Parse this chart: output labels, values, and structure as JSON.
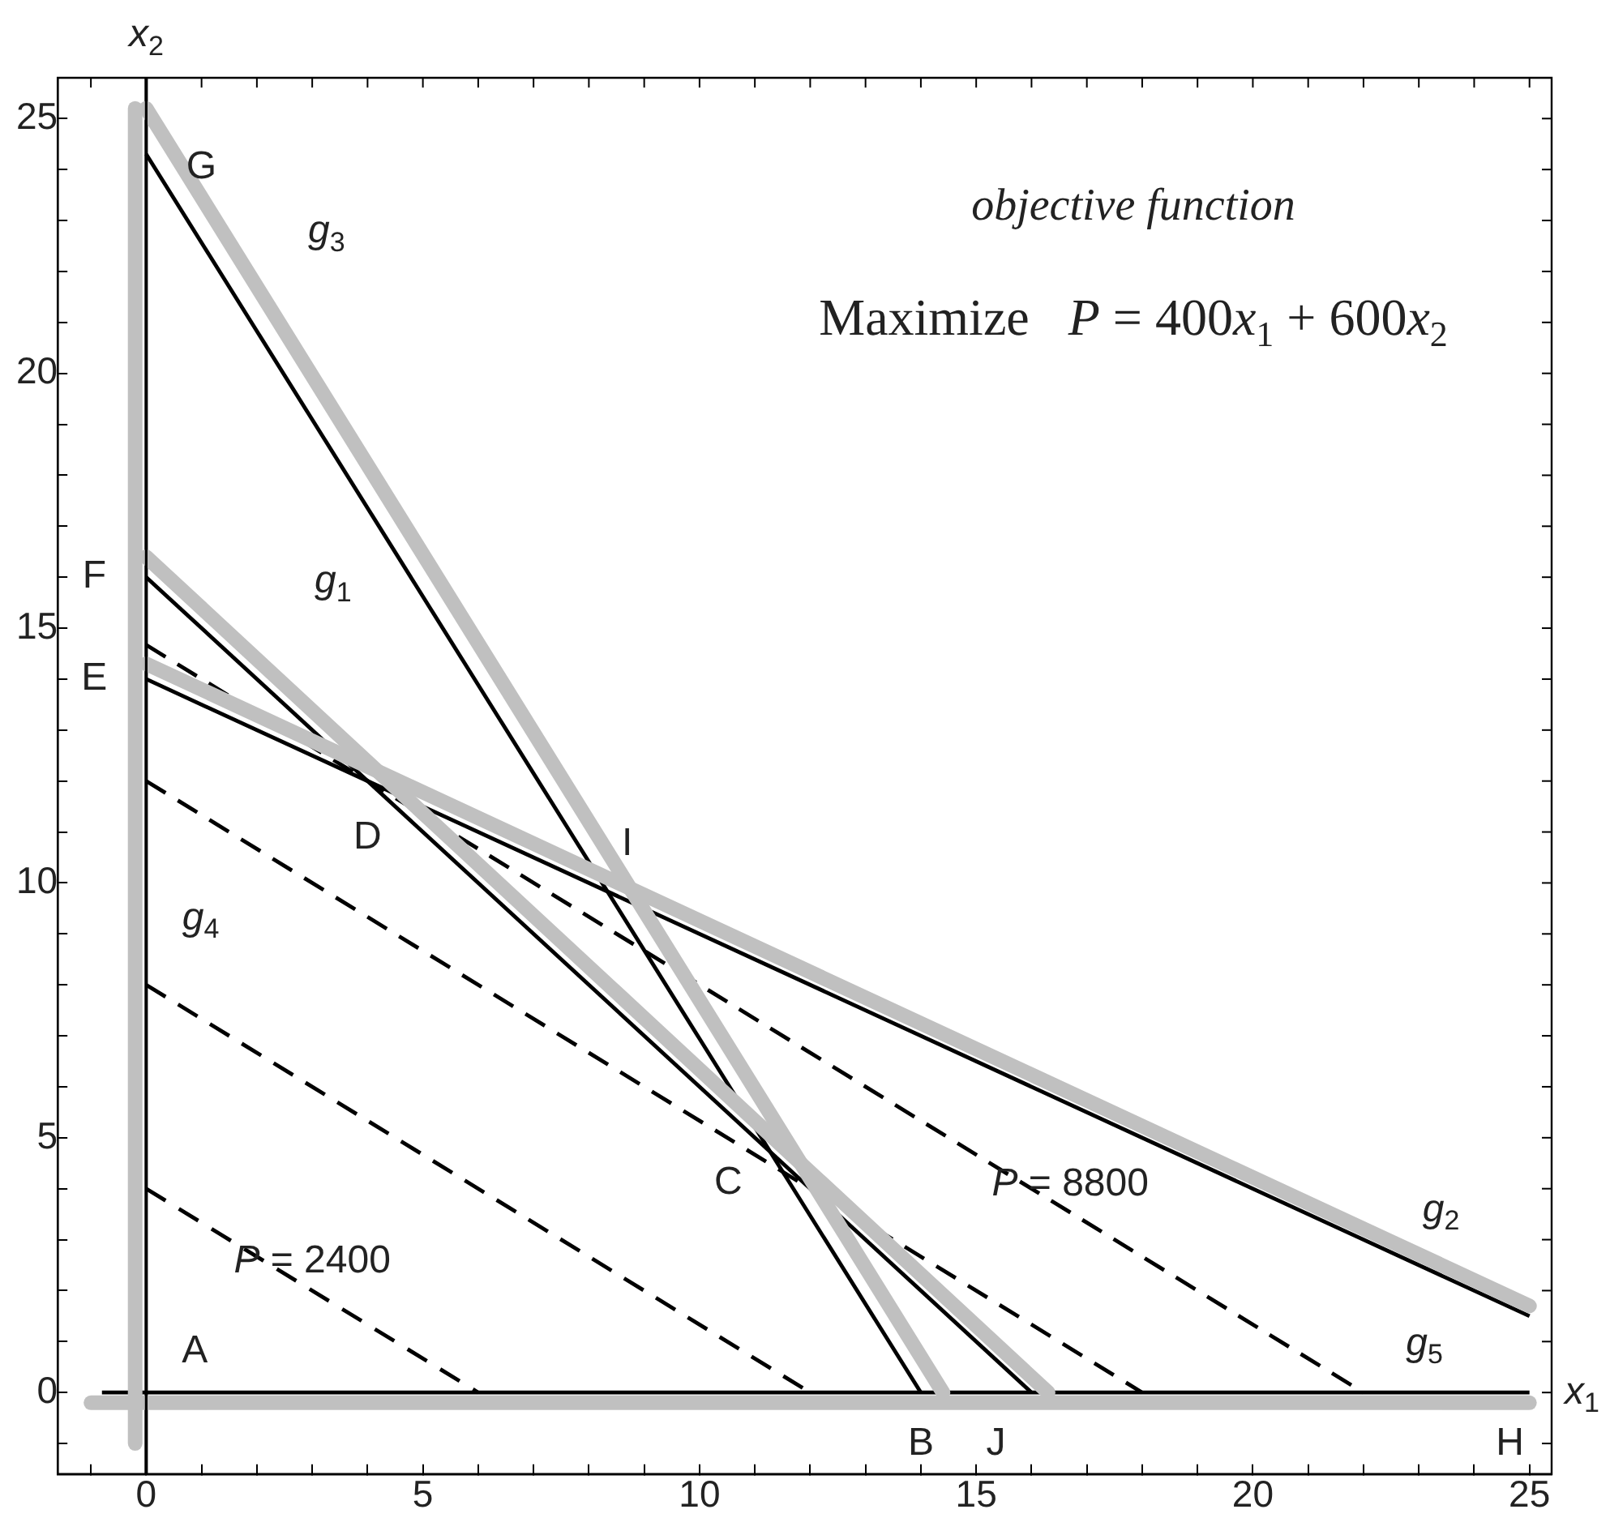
{
  "chart_data": {
    "type": "line",
    "xlabel": "x$_{1}$",
    "ylabel": "x$_{2}$",
    "xlim": [
      -1.6,
      25.4
    ],
    "ylim": [
      -1.6,
      25.8
    ],
    "xticks": [
      {
        "value": -1,
        "label": null
      },
      0,
      {
        "value": 1,
        "label": null
      },
      {
        "value": 2,
        "label": null
      },
      {
        "value": 3,
        "label": null
      },
      {
        "value": 4,
        "label": null
      },
      5,
      {
        "value": 6,
        "label": null
      },
      {
        "value": 7,
        "label": null
      },
      {
        "value": 8,
        "label": null
      },
      {
        "value": 9,
        "label": null
      },
      10,
      {
        "value": 11,
        "label": null
      },
      {
        "value": 12,
        "label": null
      },
      {
        "value": 13,
        "label": null
      },
      {
        "value": 14,
        "label": null
      },
      15,
      {
        "value": 16,
        "label": null
      },
      {
        "value": 17,
        "label": null
      },
      {
        "value": 18,
        "label": null
      },
      {
        "value": 19,
        "label": null
      },
      20,
      {
        "value": 21,
        "label": null
      },
      {
        "value": 22,
        "label": null
      },
      {
        "value": 23,
        "label": null
      },
      {
        "value": 24,
        "label": null
      },
      25
    ],
    "yticks": [
      {
        "value": -1,
        "label": null
      },
      0,
      {
        "value": 1,
        "label": null
      },
      {
        "value": 2,
        "label": null
      },
      {
        "value": 3,
        "label": null
      },
      {
        "value": 4,
        "label": null
      },
      5,
      {
        "value": 6,
        "label": null
      },
      {
        "value": 7,
        "label": null
      },
      {
        "value": 8,
        "label": null
      },
      {
        "value": 9,
        "label": null
      },
      10,
      {
        "value": 11,
        "label": null
      },
      {
        "value": 12,
        "label": null
      },
      {
        "value": 13,
        "label": null
      },
      {
        "value": 14,
        "label": null
      },
      15,
      {
        "value": 16,
        "label": null
      },
      {
        "value": 17,
        "label": null
      },
      {
        "value": 18,
        "label": null
      },
      {
        "value": 19,
        "label": null
      },
      20,
      {
        "value": 21,
        "label": null
      },
      {
        "value": 22,
        "label": null
      },
      {
        "value": 23,
        "label": null
      },
      {
        "value": 24,
        "label": null
      },
      25
    ],
    "grid": false,
    "legend": false,
    "marker": "none",
    "ref_lines": [
      {
        "axis": "x",
        "value": 0,
        "color": "#000000"
      }
    ],
    "series": [
      {
        "color": "#c0c0c0",
        "x": [
          0,
          14.4
        ],
        "values": [
          25.2,
          0
        ]
      },
      {
        "color": "#c0c0c0",
        "x": [
          0,
          16.3
        ],
        "values": [
          16.4,
          0
        ]
      },
      {
        "color": "#c0c0c0",
        "x": [
          0,
          25
        ],
        "values": [
          14.3,
          1.7
        ]
      },
      {
        "color": "#c0c0c0",
        "x": [
          -0.2,
          -0.2
        ],
        "values": [
          -1,
          25.2
        ]
      },
      {
        "color": "#c0c0c0",
        "x": [
          -1,
          25
        ],
        "values": [
          -0.2,
          -0.2
        ]
      },
      {
        "color": "#000000",
        "x": [
          0,
          14
        ],
        "values": [
          24.3,
          0
        ]
      },
      {
        "color": "#000000",
        "x": [
          0,
          16
        ],
        "values": [
          16,
          0
        ]
      },
      {
        "color": "#000000",
        "x": [
          0,
          25
        ],
        "values": [
          14,
          1.5
        ]
      },
      {
        "color": "#000000",
        "x": [
          -0.8,
          25
        ],
        "values": [
          0,
          0
        ]
      },
      {
        "color": "#000000",
        "line_style": "dashed",
        "x": [
          0,
          6
        ],
        "values": [
          4,
          0
        ]
      },
      {
        "color": "#000000",
        "line_style": "dashed",
        "x": [
          0,
          12
        ],
        "values": [
          8,
          0
        ]
      },
      {
        "color": "#000000",
        "line_style": "dashed",
        "x": [
          0,
          18
        ],
        "values": [
          12,
          0
        ]
      },
      {
        "color": "#000000",
        "line_style": "dashed",
        "x": [
          0,
          22
        ],
        "values": [
          14.67,
          0
        ]
      }
    ],
    "annotations": [
      "objective function",
      "Maximize   P = 400x$_{1}$ + 600x$_{2}$",
      {
        "text": "A",
        "x": 0,
        "y": 0
      },
      {
        "text": "B",
        "x": 14,
        "y": 0
      },
      {
        "text": "J",
        "x": 16,
        "y": 0
      },
      {
        "text": "H",
        "x": 25,
        "y": 0
      },
      {
        "text": "C",
        "x": 11.4,
        "y": 4.5
      },
      {
        "text": "D",
        "x": 4,
        "y": 12
      },
      {
        "text": "I",
        "x": 8.4,
        "y": 9.8
      },
      {
        "text": "E",
        "x": 0,
        "y": 14
      },
      {
        "text": "F",
        "x": 0,
        "y": 16
      },
      {
        "text": "G",
        "x": 0,
        "y": 24.3
      },
      {
        "text": "g$_{1}$",
        "x": 2,
        "y": 14
      },
      {
        "text": "g$_{2}$",
        "x": 23.4,
        "y": 2.3
      },
      {
        "text": "g$_{3}$",
        "x": 1.5,
        "y": 21.7
      },
      {
        "text": "g$_{4}$",
        "x": -0.1,
        "y": 9.3
      },
      {
        "text": "g$_{5}$",
        "x": 23.1,
        "y": 0
      },
      {
        "text": "P = 2400",
        "x": 3,
        "y": 2
      },
      {
        "text": "P = 8800",
        "x": 16.7,
        "y": 3.5
      }
    ]
  }
}
